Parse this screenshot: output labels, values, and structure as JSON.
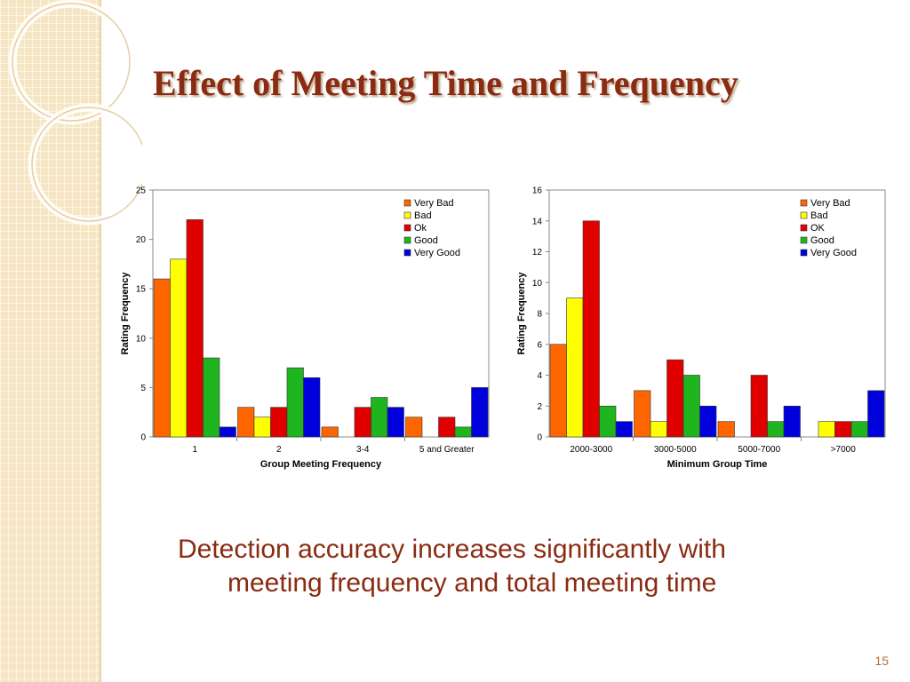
{
  "slide": {
    "title": "Effect of Meeting Time and Frequency",
    "caption_line1": "Detection accuracy increases significantly with",
    "caption_line2": "meeting frequency and total meeting time",
    "page_number": "15"
  },
  "colors": {
    "very_bad": "#ff6600",
    "bad": "#ffff00",
    "ok": "#e00000",
    "good": "#1fb51f",
    "very_good": "#0000dd",
    "title": "#8a2b12"
  },
  "chart_data": [
    {
      "type": "bar",
      "categories": [
        "1",
        "2",
        "3-4",
        "5 and Greater"
      ],
      "series": [
        {
          "name": "Very Bad",
          "values": [
            16,
            3,
            1,
            2
          ]
        },
        {
          "name": "Bad",
          "values": [
            18,
            2,
            0,
            0
          ]
        },
        {
          "name": "Ok",
          "values": [
            22,
            3,
            3,
            2
          ]
        },
        {
          "name": "Good",
          "values": [
            8,
            7,
            4,
            1
          ]
        },
        {
          "name": "Very Good",
          "values": [
            1,
            6,
            3,
            5
          ]
        }
      ],
      "xlabel": "Group Meeting Frequency",
      "ylabel": "Rating Frequency",
      "ylim": [
        0,
        25
      ],
      "yticks": [
        0,
        5,
        10,
        15,
        20,
        25
      ],
      "grid": false,
      "legend": "top-right"
    },
    {
      "type": "bar",
      "categories": [
        "2000-3000",
        "3000-5000",
        "5000-7000",
        ">7000"
      ],
      "series": [
        {
          "name": "Very Bad",
          "values": [
            6,
            3,
            1,
            0
          ]
        },
        {
          "name": "Bad",
          "values": [
            9,
            1,
            0,
            1
          ]
        },
        {
          "name": "OK",
          "values": [
            14,
            5,
            4,
            1
          ]
        },
        {
          "name": "Good",
          "values": [
            2,
            4,
            1,
            1
          ]
        },
        {
          "name": "Very Good",
          "values": [
            1,
            2,
            2,
            3
          ]
        }
      ],
      "xlabel": "Minimum Group Time",
      "ylabel": "Rating Frequency",
      "ylim": [
        0,
        16
      ],
      "yticks": [
        0,
        2,
        4,
        6,
        8,
        10,
        12,
        14,
        16
      ],
      "grid": false,
      "legend": "top-right"
    }
  ]
}
